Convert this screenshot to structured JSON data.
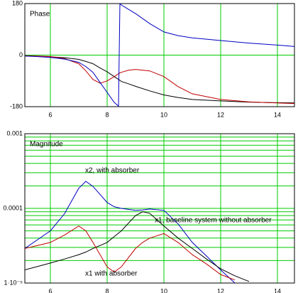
{
  "chart_data": [
    {
      "type": "line",
      "title": "Phase",
      "x": [
        5.1,
        5.5,
        6,
        6.5,
        7,
        7.25,
        7.5,
        7.75,
        8,
        8.25,
        8.4,
        8.45,
        8.5,
        8.75,
        9,
        9.5,
        10,
        10.5,
        11,
        12,
        13,
        14,
        14.6
      ],
      "series": [
        {
          "color": "#000000",
          "values": [
            -3,
            -4,
            -6,
            -9,
            -15,
            -22,
            -30,
            -45,
            -58,
            -75,
            -85,
            -88,
            -92,
            -100,
            -109,
            -125,
            -139,
            -148,
            -155,
            -160,
            -164,
            -166,
            -167
          ]
        },
        {
          "color": "#c00000",
          "values": [
            -2,
            -3,
            -5,
            -12,
            -30,
            -55,
            -85,
            -98,
            -90,
            -75,
            -65,
            -62,
            -60,
            -53,
            -50,
            -55,
            -75,
            -110,
            -135,
            -155,
            -163,
            -167,
            -169
          ]
        },
        {
          "color": "#0000c0",
          "values": [
            -3,
            -5,
            -8,
            -14,
            -25,
            -40,
            -60,
            -95,
            -130,
            -165,
            -178,
            180,
            175,
            160,
            145,
            110,
            81,
            68,
            60,
            51,
            42,
            35,
            30
          ]
        }
      ],
      "xlim": [
        5.1,
        14.6
      ],
      "xticks": [
        6,
        8,
        10,
        12,
        14
      ],
      "ylim": [
        -180,
        180
      ],
      "yticks": [
        -180,
        0,
        180
      ],
      "grid": true
    },
    {
      "type": "line",
      "title": "Magnitude",
      "log_y": true,
      "x": [
        5.1,
        6,
        6.5,
        7,
        7.25,
        7.5,
        8,
        8.25,
        8.5,
        9,
        9.25,
        9.5,
        10,
        10.5,
        11,
        11.5,
        12,
        12.5,
        13,
        14,
        14.6
      ],
      "series": [
        {
          "color": "#0000c0",
          "values": [
            2.9e-05,
            5e-05,
            8.5e-05,
            0.000186,
            0.00023,
            0.000197,
            0.00012,
            0.000105,
            0.0001,
            9.4e-05,
            9.5e-05,
            9.8e-05,
            9.4e-05,
            6.2e-05,
            3.5e-05,
            2.3e-05,
            1.5e-05,
            1e-05,
            null,
            null,
            null
          ]
        },
        {
          "color": "#000000",
          "values": [
            1.5e-05,
            1.85e-05,
            2.1e-05,
            2.4e-05,
            2.6e-05,
            2.9e-05,
            3.5e-05,
            4.2e-05,
            5e-05,
            8e-05,
            9e-05,
            8.6e-05,
            5.8e-05,
            4e-05,
            2.9e-05,
            2.1e-05,
            1.55e-05,
            1.25e-05,
            1.05e-05,
            null,
            null
          ]
        },
        {
          "color": "#c00000",
          "values": [
            2.9e-05,
            3.5e-05,
            4.4e-05,
            5.8e-05,
            5e-05,
            3.5e-05,
            1.65e-05,
            1.4e-05,
            1.65e-05,
            2.9e-05,
            3.5e-05,
            4e-05,
            4.6e-05,
            3.5e-05,
            2.4e-05,
            1.8e-05,
            1.3e-05,
            1.1e-05,
            null,
            null,
            null
          ]
        }
      ],
      "annotations": [
        {
          "text": "x2, with absorber",
          "color": "#0000c0"
        },
        {
          "text": "x1, baseline system without absorber",
          "color": "#000000"
        },
        {
          "text": "x1 with absorber",
          "color": "#c00000"
        }
      ],
      "xlim": [
        5.1,
        14.6
      ],
      "xticks": [
        6,
        8,
        10,
        12,
        14
      ],
      "ylim": [
        1e-05,
        0.001
      ],
      "yticks": [
        {
          "value": 1e-05,
          "label": "1·10⁻⁵"
        },
        0.0001,
        0.001
      ],
      "grid": true,
      "minor_grid": true
    }
  ]
}
